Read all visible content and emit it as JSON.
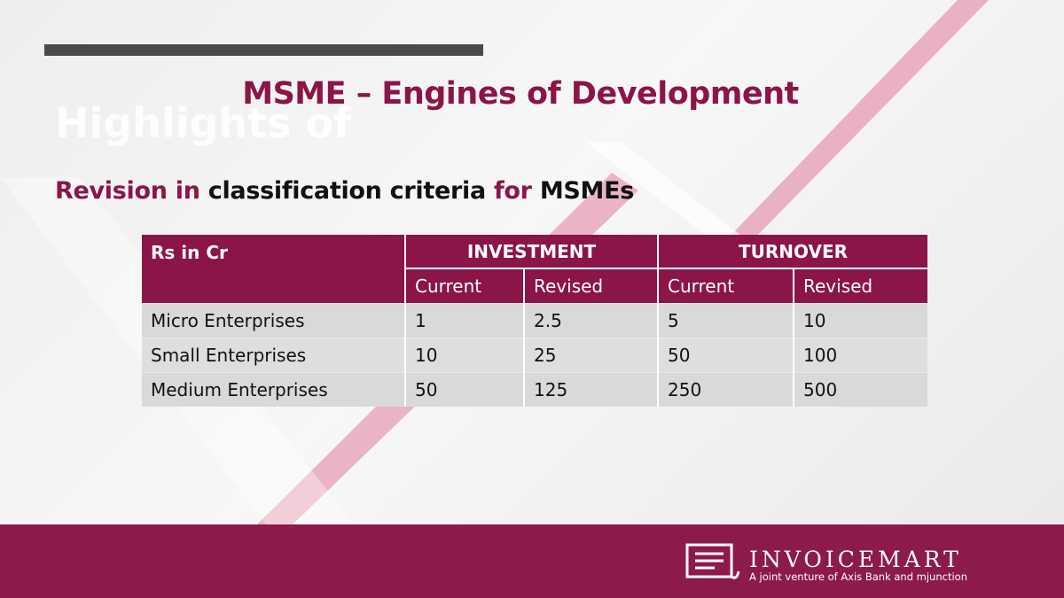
{
  "ghost_heading": "Highlights of",
  "title": "MSME – Engines of Development",
  "subtitle": [
    "Revision in",
    "classification criteria",
    "for",
    "MSMEs"
  ],
  "table": {
    "corner": "Rs in Cr",
    "groups": [
      "INVESTMENT",
      "TURNOVER"
    ],
    "subheaders": [
      "Current",
      "Revised",
      "Current",
      "Revised"
    ],
    "rows": [
      [
        "Micro Enterprises",
        1,
        2.5,
        5,
        10
      ],
      [
        "Small Enterprises",
        10,
        25,
        50,
        100
      ],
      [
        "Medium Enterprises",
        50,
        125,
        250,
        500
      ]
    ]
  },
  "footer": {
    "brand": "INVOICEMART",
    "tagline": "A joint venture of Axis Bank and mjunction"
  }
}
